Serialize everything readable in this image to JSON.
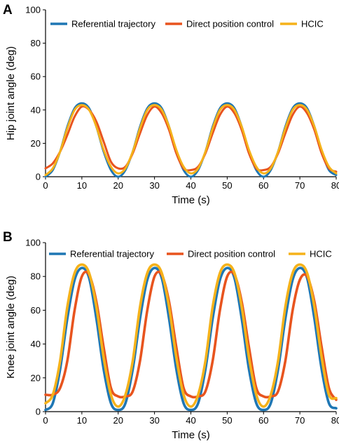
{
  "chart_data": [
    {
      "panel": "A",
      "type": "line",
      "xlabel": "Time (s)",
      "ylabel": "Hip joint angle (deg)",
      "xlim": [
        0,
        80
      ],
      "ylim": [
        0,
        100
      ],
      "xticks": [
        "0",
        "10",
        "20",
        "30",
        "40",
        "50",
        "60",
        "70",
        "80"
      ],
      "yticks": [
        "0",
        "20",
        "40",
        "60",
        "80",
        "100"
      ],
      "grid": false,
      "legend_position": "top",
      "x": [
        0,
        2,
        4,
        6,
        8,
        10,
        12,
        14,
        16,
        18,
        20,
        22,
        24,
        26,
        28,
        30,
        32,
        34,
        36,
        38,
        40,
        42,
        44,
        46,
        48,
        50,
        52,
        54,
        56,
        58,
        60,
        62,
        64,
        66,
        68,
        70,
        72,
        74,
        76,
        78,
        80
      ],
      "series": [
        {
          "name": "Referential trajectory",
          "color": "#1f77b4",
          "values": [
            0,
            4,
            15,
            30,
            41,
            44,
            41,
            30,
            15,
            4,
            0,
            4,
            15,
            30,
            41,
            44,
            41,
            30,
            15,
            4,
            0,
            4,
            15,
            30,
            41,
            44,
            41,
            30,
            15,
            4,
            0,
            4,
            15,
            30,
            41,
            44,
            41,
            30,
            15,
            4,
            1
          ]
        },
        {
          "name": "Direct position control",
          "color": "#e8541e",
          "values": [
            5,
            8,
            15,
            25,
            36,
            42,
            40,
            33,
            21,
            9,
            5,
            6,
            14,
            26,
            37,
            42,
            38,
            28,
            14,
            5,
            4,
            6,
            14,
            26,
            37,
            42,
            38,
            28,
            14,
            5,
            4,
            6,
            14,
            26,
            37,
            42,
            38,
            28,
            14,
            5,
            3
          ]
        },
        {
          "name": "HCIC",
          "color": "#f5b21a",
          "values": [
            1,
            5,
            15,
            29,
            40,
            43,
            40,
            30,
            16,
            6,
            2,
            5,
            15,
            29,
            40,
            43,
            40,
            30,
            16,
            6,
            2,
            5,
            15,
            29,
            40,
            43,
            40,
            30,
            16,
            6,
            2,
            5,
            15,
            29,
            40,
            43,
            40,
            30,
            16,
            6,
            2
          ]
        }
      ]
    },
    {
      "panel": "B",
      "type": "line",
      "xlabel": "Time (s)",
      "ylabel": "Knee joint angle (deg)",
      "xlim": [
        0,
        80
      ],
      "ylim": [
        0,
        100
      ],
      "xticks": [
        "0",
        "10",
        "20",
        "30",
        "40",
        "50",
        "60",
        "70",
        "80"
      ],
      "yticks": [
        "0",
        "20",
        "40",
        "60",
        "80",
        "100"
      ],
      "grid": false,
      "legend_position": "top",
      "x": [
        0,
        2,
        4,
        6,
        8,
        10,
        12,
        14,
        16,
        18,
        20,
        22,
        24,
        26,
        28,
        30,
        32,
        34,
        36,
        38,
        40,
        42,
        44,
        46,
        48,
        50,
        52,
        54,
        56,
        58,
        60,
        62,
        64,
        66,
        68,
        70,
        72,
        74,
        76,
        78,
        80
      ],
      "series": [
        {
          "name": "Referential trajectory",
          "color": "#1f77b4",
          "values": [
            1,
            5,
            25,
            55,
            78,
            85,
            79,
            55,
            25,
            5,
            1,
            5,
            25,
            55,
            78,
            85,
            79,
            55,
            25,
            5,
            1,
            5,
            25,
            55,
            78,
            85,
            79,
            55,
            25,
            5,
            1,
            5,
            25,
            55,
            78,
            85,
            79,
            55,
            25,
            5,
            2
          ]
        },
        {
          "name": "Direct position control",
          "color": "#e8541e",
          "values": [
            10,
            10,
            14,
            30,
            60,
            80,
            81,
            65,
            38,
            14,
            9,
            9,
            12,
            30,
            60,
            80,
            81,
            65,
            38,
            14,
            9,
            9,
            12,
            30,
            60,
            80,
            81,
            65,
            38,
            14,
            9,
            9,
            12,
            30,
            60,
            78,
            80,
            65,
            38,
            14,
            7
          ]
        },
        {
          "name": "HCIC",
          "color": "#f5b21a",
          "values": [
            5,
            10,
            30,
            62,
            82,
            87,
            82,
            62,
            32,
            10,
            3,
            10,
            30,
            62,
            82,
            87,
            82,
            62,
            32,
            10,
            3,
            10,
            30,
            62,
            82,
            87,
            82,
            62,
            32,
            10,
            3,
            10,
            30,
            62,
            82,
            87,
            82,
            62,
            32,
            10,
            8
          ]
        }
      ]
    }
  ]
}
